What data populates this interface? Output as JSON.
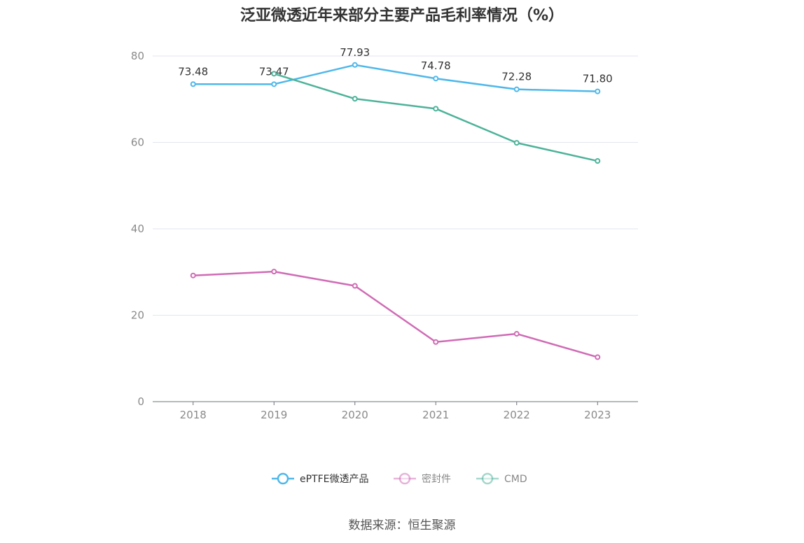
{
  "chart_data": {
    "type": "line",
    "title": "泛亚微透近年来部分主要产品毛利率情况（%）",
    "categories": [
      "2018",
      "2019",
      "2020",
      "2021",
      "2022",
      "2023"
    ],
    "ylim": [
      0,
      80
    ],
    "yticks": [
      "0",
      "20",
      "40",
      "60",
      "80"
    ],
    "grid": true,
    "legend_position": "bottom",
    "series": [
      {
        "name": "ePTFE微透产品",
        "color": "#4fb8ea",
        "values": [
          73.48,
          73.47,
          77.93,
          74.78,
          72.28,
          71.8
        ],
        "labels": [
          "73.48",
          "73.47",
          "77.93",
          "74.78",
          "72.28",
          "71.80"
        ]
      },
      {
        "name": "密封件",
        "color": "#d06bb5",
        "values": [
          29.2,
          30.1,
          26.8,
          13.8,
          15.7,
          10.3
        ],
        "labels": null
      },
      {
        "name": "CMD",
        "color": "#4db399",
        "values": [
          null,
          75.9,
          70.1,
          67.8,
          59.9,
          55.7
        ],
        "labels": null
      }
    ]
  },
  "source": "数据来源：恒生聚源"
}
